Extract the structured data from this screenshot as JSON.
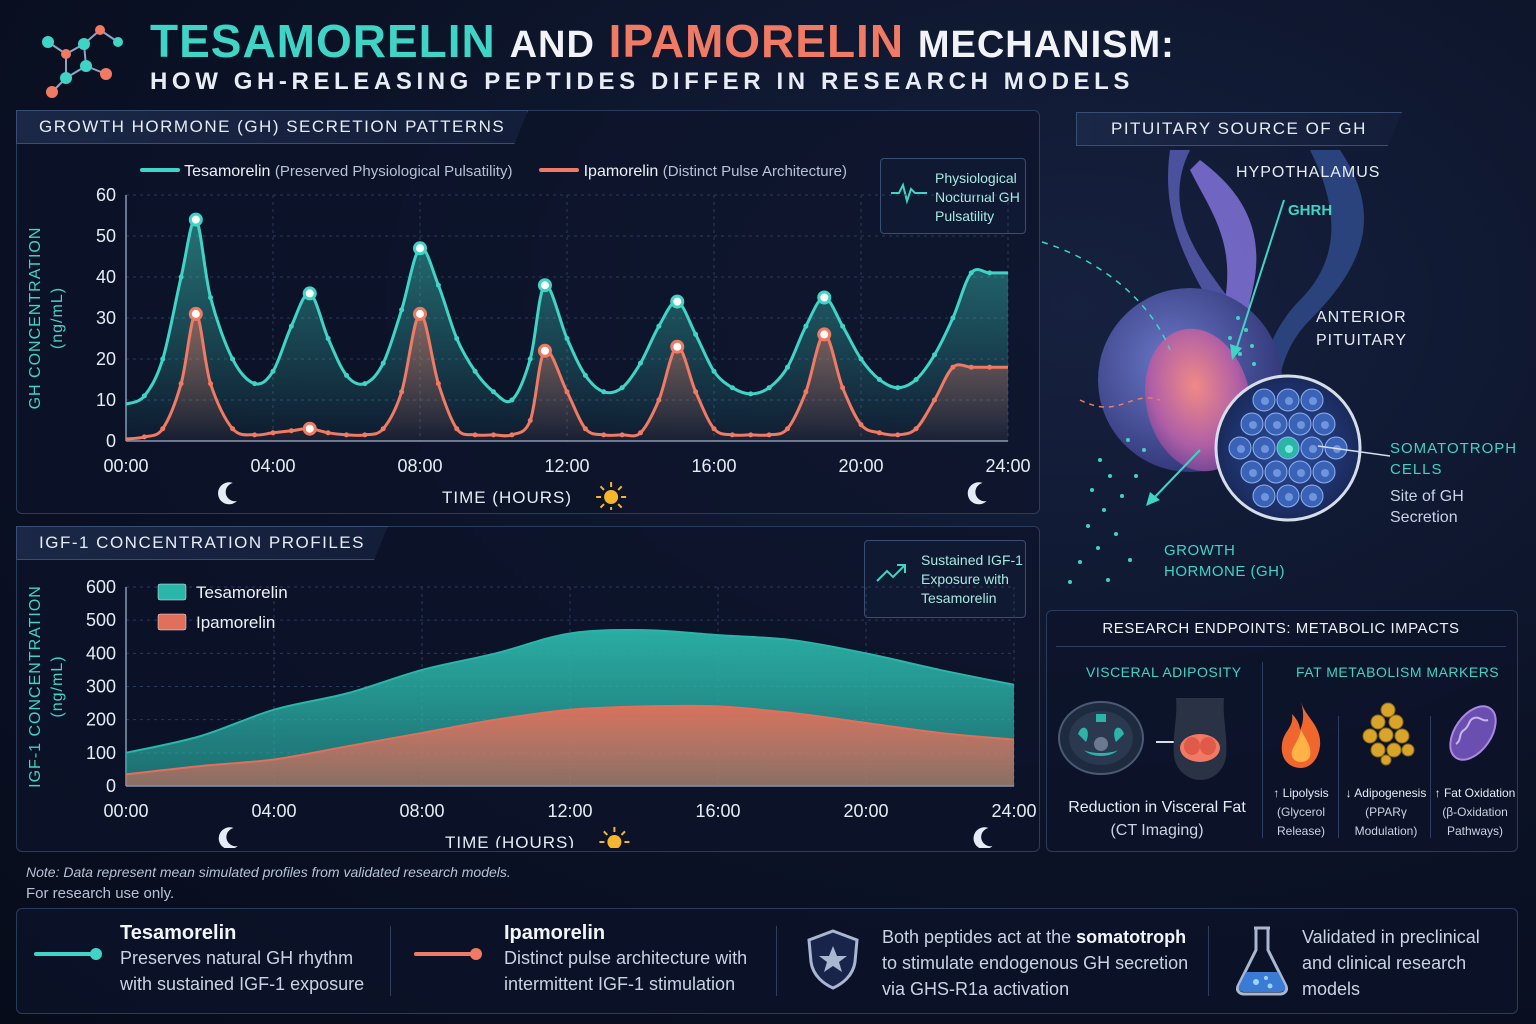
{
  "header": {
    "title_part1": "TESAMORELIN",
    "title_part2": "AND",
    "title_part3": "IPAMORELIN",
    "title_part4": "MECHANISM:",
    "subtitle": "HOW GH-RELEASING PEPTIDES DIFFER IN RESEARCH MODELS"
  },
  "gh_panel": {
    "label": "GROWTH HORMONE (GH) SECRETION PATTERNS",
    "legend": [
      {
        "name": "Tesamorelin",
        "note": "(Preserved Physiological Pulsatility)"
      },
      {
        "name": "Ipamorelin",
        "note": "(Distinct Pulse Architecture)"
      }
    ],
    "callout_line1": "Physiological",
    "callout_line2": "Nocturnal GH",
    "callout_line3": "Pulsatility"
  },
  "igf_panel": {
    "label": "IGF-1 CONCENTRATION PROFILES",
    "callout_line1": "Sustained IGF-1",
    "callout_line2": "Exposure with",
    "callout_line3": "Tesamorelin"
  },
  "chart_data": [
    {
      "type": "line",
      "ylabel": "GH CONCENTRATION (ng/mL)",
      "xlabel": "TIME (HOURS)",
      "xlim": [
        0,
        24
      ],
      "ylim": [
        0,
        60
      ],
      "yticks": [
        0,
        10,
        20,
        30,
        40,
        50,
        60
      ],
      "xticks": [
        "00:00",
        "04:00",
        "08:00",
        "12:00",
        "16:00",
        "20:00",
        "24:00"
      ],
      "series": [
        {
          "name": "Tesamorelin",
          "color": "#3fd4c5",
          "x": [
            0,
            0.5,
            1.0,
            1.5,
            1.9,
            2.3,
            2.9,
            3.5,
            4.0,
            4.5,
            5.0,
            5.5,
            6.0,
            6.5,
            7.0,
            7.5,
            8.0,
            8.5,
            9.0,
            9.5,
            10.0,
            10.5,
            11.0,
            11.4,
            12.0,
            12.5,
            13.0,
            13.5,
            14.0,
            14.5,
            15.0,
            15.5,
            16.0,
            16.5,
            17.0,
            17.5,
            18.0,
            18.5,
            19.0,
            19.5,
            20.0,
            20.5,
            21.0,
            21.5,
            22.0,
            22.5,
            23.0,
            23.5,
            24.0
          ],
          "y": [
            9,
            11,
            20,
            40,
            54,
            35,
            20,
            14,
            17,
            28,
            36,
            25,
            16,
            14,
            19,
            32,
            47,
            38,
            25,
            17,
            12,
            10,
            20,
            38,
            25,
            16,
            12,
            13,
            19,
            28,
            34,
            26,
            17,
            13,
            11.5,
            13,
            18,
            28,
            35,
            28,
            20,
            15,
            13,
            15,
            21,
            30,
            41,
            41,
            41
          ]
        },
        {
          "name": "Ipamorelin",
          "color": "#f07a63",
          "x": [
            0,
            0.5,
            1.0,
            1.5,
            1.9,
            2.3,
            2.9,
            3.5,
            4.0,
            4.5,
            5.0,
            5.5,
            6.0,
            6.5,
            7.0,
            7.5,
            8.0,
            8.5,
            9.0,
            9.5,
            10.0,
            10.5,
            11.0,
            11.4,
            12.0,
            12.5,
            13.0,
            13.5,
            14.0,
            14.5,
            15.0,
            15.5,
            16.0,
            16.5,
            17.0,
            17.5,
            18.0,
            18.5,
            19.0,
            19.5,
            20.0,
            20.5,
            21.0,
            21.5,
            22.0,
            22.5,
            23.0,
            23.5,
            24.0
          ],
          "y": [
            0.5,
            1,
            3,
            14,
            31,
            14,
            3,
            1.5,
            2,
            2.5,
            3,
            2,
            1.5,
            1.5,
            3,
            12,
            31,
            14,
            3,
            1.5,
            1.5,
            1.5,
            5,
            22,
            12,
            3,
            1.5,
            1.5,
            2,
            10,
            23,
            12,
            3,
            1.5,
            1.5,
            1.5,
            3,
            12,
            26,
            13,
            4,
            2,
            1.5,
            3,
            10,
            18,
            18,
            18,
            18
          ]
        }
      ]
    },
    {
      "type": "area",
      "ylabel": "IGF-1 CONCENTRATION (ng/mL)",
      "xlabel": "TIME (HOURS)",
      "xlim": [
        0,
        24
      ],
      "ylim": [
        0,
        600
      ],
      "yticks": [
        0,
        100,
        200,
        300,
        400,
        500,
        600
      ],
      "xticks": [
        "00:00",
        "04:00",
        "08:00",
        "12:00",
        "16:00",
        "20:00",
        "24:00"
      ],
      "series": [
        {
          "name": "Tesamorelin",
          "color": "#2bb5a9",
          "x": [
            0,
            2,
            4,
            6,
            8,
            10,
            12,
            14,
            16,
            18,
            20,
            22,
            24
          ],
          "y": [
            100,
            150,
            230,
            280,
            350,
            400,
            460,
            470,
            455,
            440,
            400,
            350,
            305
          ]
        },
        {
          "name": "Ipamorelin",
          "color": "#e0705b",
          "x": [
            0,
            2,
            4,
            6,
            8,
            10,
            12,
            14,
            16,
            18,
            20,
            22,
            24
          ],
          "y": [
            35,
            60,
            80,
            120,
            160,
            200,
            230,
            240,
            240,
            220,
            190,
            160,
            140
          ]
        }
      ]
    }
  ],
  "pituitary": {
    "label": "PITUITARY SOURCE OF GH",
    "hypothalamus": "HYPOTHALAMUS",
    "ghrh": "GHRH",
    "anterior1": "ANTERIOR",
    "anterior2": "PITUITARY",
    "soma1": "SOMATOTROPH",
    "soma2": "CELLS",
    "site1": "Site of GH",
    "site2": "Secretion",
    "gh1": "GROWTH",
    "gh2": "HORMONE (GH)"
  },
  "endpoints": {
    "label": "RESEARCH ENDPOINTS: METABOLIC IMPACTS",
    "visceral_title": "VISCERAL ADIPOSITY",
    "fat_title": "FAT METABOLISM MARKERS",
    "visceral_caption1": "Reduction in Visceral Fat",
    "visceral_caption2": "(CT Imaging)",
    "markers": [
      {
        "line1": "↑ Lipolysis",
        "line2": "(Glycerol",
        "line3": "Release)"
      },
      {
        "line1": "↓ Adipogenesis",
        "line2": "(PPARγ",
        "line3": "Modulation)"
      },
      {
        "line1": "↑ Fat Oxidation",
        "line2": "(β-Oxidation",
        "line3": "Pathways)"
      }
    ]
  },
  "note": {
    "line1": "Note: Data represent mean simulated profiles from validated research models.",
    "line2": "For research use only."
  },
  "bottom": {
    "tes_title": "Tesamorelin",
    "tes_line1": "Preserves natural GH rhythm",
    "tes_line2": "with sustained IGF-1 exposure",
    "ipa_title": "Ipamorelin",
    "ipa_line1": "Distinct pulse architecture with",
    "ipa_line2": "intermittent IGF-1 stimulation",
    "both_line1a": "Both peptides act at the ",
    "both_line1b": "somatotroph",
    "both_line2": "to stimulate endogenous GH secretion",
    "both_line3": "via GHS-R1a activation",
    "val_line1": "Validated in preclinical",
    "val_line2": "and clinical research",
    "val_line3": "models"
  }
}
